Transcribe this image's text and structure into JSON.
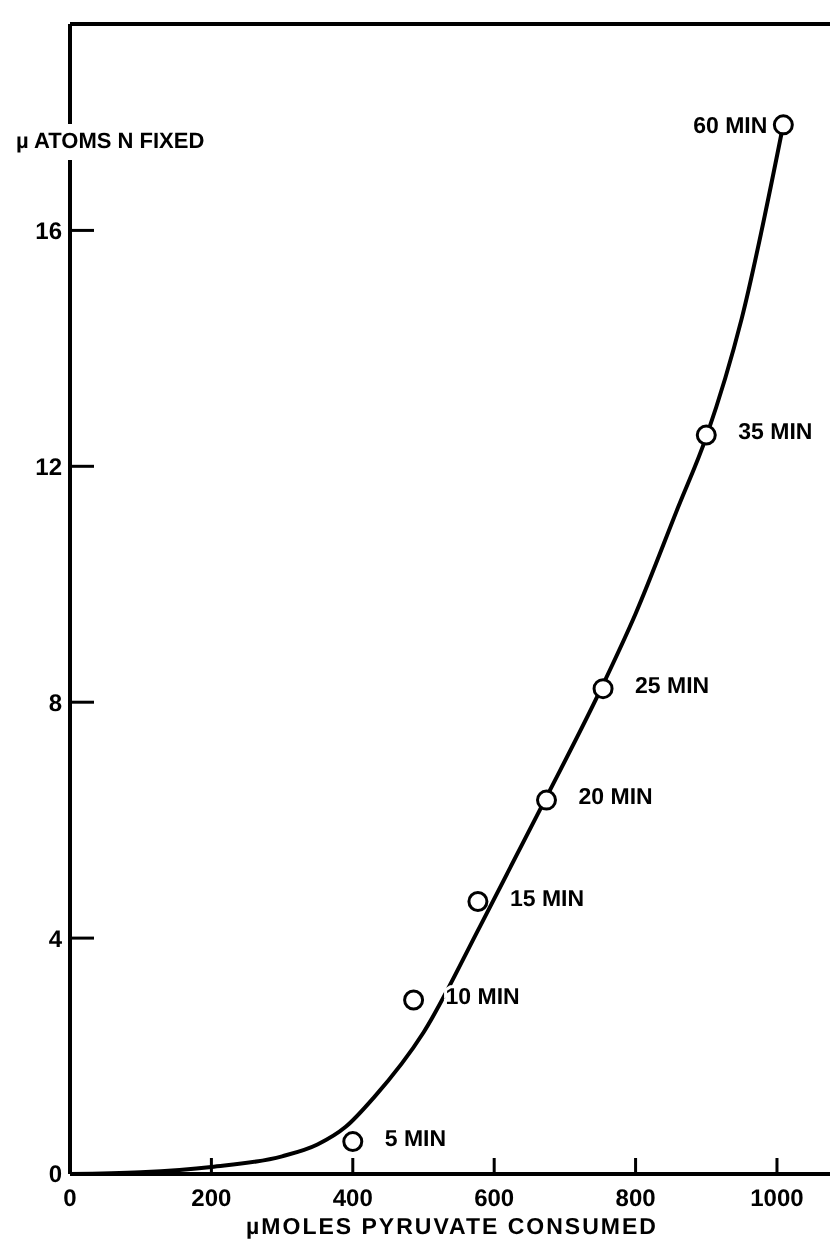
{
  "chart_data": {
    "type": "scatter",
    "xlabel": "µMOLES PYRUVATE CONSUMED",
    "ylabel": "µ ATOMS N FIXED",
    "xlim": [
      0,
      1075
    ],
    "ylim": [
      0,
      19.5
    ],
    "xticks": [
      0,
      200,
      400,
      600,
      800,
      1000
    ],
    "yticks": [
      0,
      4,
      8,
      12,
      16
    ],
    "grid": false,
    "series": [
      {
        "color": "#000000",
        "marker": "circle",
        "x": [
          400,
          486,
          577,
          674,
          754,
          900,
          1009
        ],
        "values": [
          0.55,
          2.95,
          4.62,
          6.34,
          8.23,
          12.53,
          17.79
        ]
      },
      {
        "type": "line",
        "color": "#000000",
        "marker": "none",
        "line_style": "solid",
        "x": [
          0,
          100,
          200,
          300,
          350,
          390,
          430,
          500,
          580,
          670,
          750,
          800,
          860,
          900,
          950,
          1009
        ],
        "values": [
          0,
          0.03,
          0.12,
          0.3,
          0.5,
          0.8,
          1.3,
          2.4,
          4.2,
          6.3,
          8.2,
          9.5,
          11.3,
          12.5,
          14.5,
          17.8
        ]
      }
    ],
    "annotations": [
      {
        "text": "5 MIN",
        "x": 400,
        "y": 0.55
      },
      {
        "text": "10 MIN",
        "x": 486,
        "y": 2.95
      },
      {
        "text": "15 MIN",
        "x": 577,
        "y": 4.62
      },
      {
        "text": "20 MIN",
        "x": 674,
        "y": 6.34
      },
      {
        "text": "25 MIN",
        "x": 754,
        "y": 8.23
      },
      {
        "text": "35 MIN",
        "x": 900,
        "y": 12.53
      },
      {
        "text": "60 MIN",
        "x": 1009,
        "y": 17.79
      }
    ]
  }
}
